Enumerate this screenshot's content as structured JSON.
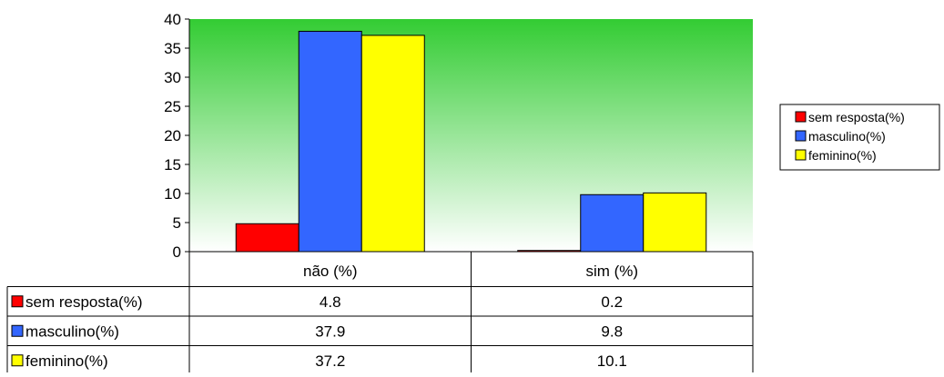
{
  "chart_data": {
    "type": "bar",
    "categories": [
      "não (%)",
      "sim (%)"
    ],
    "series": [
      {
        "name": "sem resposta(%)",
        "color": "#ff0000",
        "values": [
          4.8,
          0.2
        ]
      },
      {
        "name": "masculino(%)",
        "color": "#3366ff",
        "values": [
          37.9,
          9.8
        ]
      },
      {
        "name": "feminino(%)",
        "color": "#ffff00",
        "values": [
          37.2,
          10.1
        ]
      }
    ],
    "value_labels": [
      [
        "4.8",
        "0.2"
      ],
      [
        "37.9",
        "9.8"
      ],
      [
        "37.2",
        "10.1"
      ]
    ],
    "ylim": [
      0,
      40
    ],
    "yticks": [
      0,
      5,
      10,
      15,
      20,
      25,
      30,
      35,
      40
    ],
    "plot_background": {
      "top": "#33cc33",
      "bottom": "#ffffff"
    },
    "legend_position": "right",
    "data_table": true,
    "title": "",
    "xlabel": "",
    "ylabel": ""
  }
}
